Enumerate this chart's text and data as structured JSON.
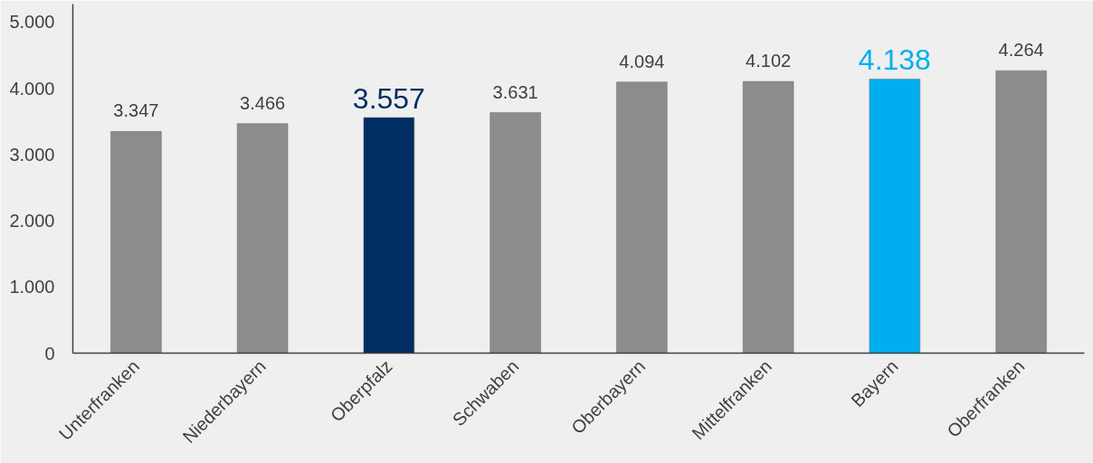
{
  "chart_data": {
    "type": "bar",
    "categories": [
      "Unterfranken",
      "Niederbayern",
      "Oberpfalz",
      "Schwaben",
      "Oberbayern",
      "Mittelfranken",
      "Bayern",
      "Oberfranken"
    ],
    "values": [
      3347,
      3466,
      3557,
      3631,
      4094,
      4102,
      4138,
      4264
    ],
    "colors": [
      "#8c8c8e",
      "#8c8c8e",
      "#002d62",
      "#8c8c8e",
      "#8c8c8e",
      "#8c8c8e",
      "#00aeef",
      "#8c8c8e"
    ],
    "value_labels": [
      "3.347",
      "3.466",
      "3.557",
      "3.631",
      "4.094",
      "4.102",
      "4.138",
      "4.264"
    ],
    "ylim": [
      0,
      5270
    ],
    "yticks": [
      {
        "value": 0,
        "label": "0"
      },
      {
        "value": 1000,
        "label": "1.000"
      },
      {
        "value": 2000,
        "label": "2.000"
      },
      {
        "value": 3000,
        "label": "3.000"
      },
      {
        "value": 4000,
        "label": "4.000"
      },
      {
        "value": 5000,
        "label": "5.000"
      }
    ],
    "grid": false
  }
}
